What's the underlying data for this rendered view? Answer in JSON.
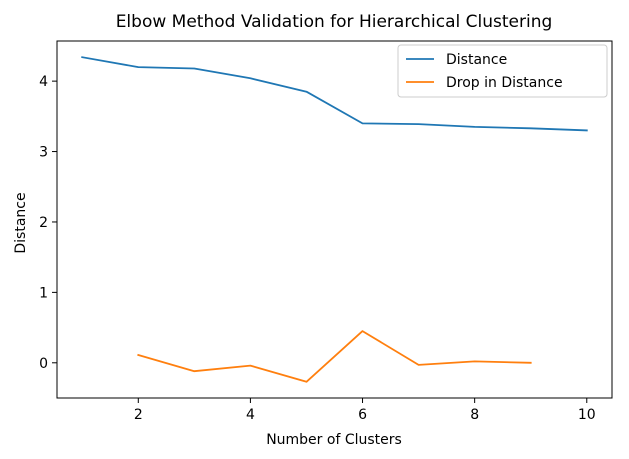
{
  "chart_data": {
    "type": "line",
    "title": "Elbow Method Validation for Hierarchical Clustering",
    "xlabel": "Number of Clusters",
    "ylabel": "Distance",
    "xlim": [
      0.55,
      10.45
    ],
    "ylim": [
      -0.5,
      4.57
    ],
    "x_ticks": [
      2,
      4,
      6,
      8,
      10
    ],
    "y_ticks": [
      0,
      1,
      2,
      3,
      4
    ],
    "grid": false,
    "legend_position": "top-right",
    "series": [
      {
        "name": "Distance",
        "color": "#1f77b4",
        "x": [
          1,
          2,
          3,
          4,
          5,
          6,
          7,
          8,
          9,
          10
        ],
        "y": [
          4.34,
          4.2,
          4.18,
          4.04,
          3.85,
          3.4,
          3.39,
          3.35,
          3.33,
          3.3
        ]
      },
      {
        "name": "Drop in Distance",
        "color": "#ff7f0e",
        "x": [
          2,
          3,
          4,
          5,
          6,
          7,
          8,
          9
        ],
        "y": [
          0.11,
          -0.12,
          -0.04,
          -0.27,
          0.45,
          -0.03,
          0.02,
          0.0
        ]
      }
    ]
  }
}
